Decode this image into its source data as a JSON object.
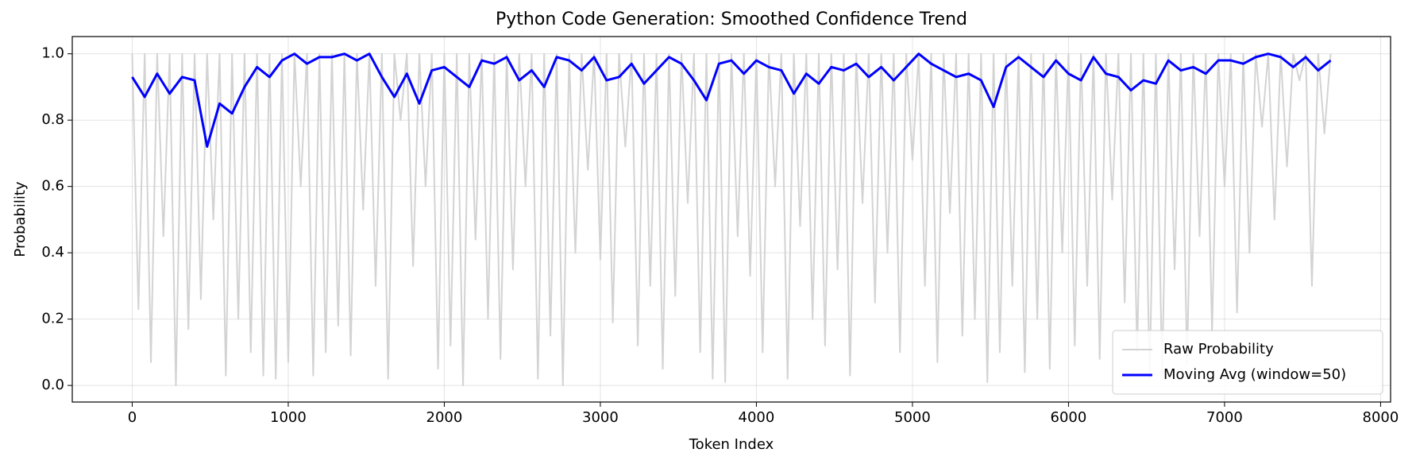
{
  "chart_data": {
    "type": "line",
    "title": "Python Code Generation: Smoothed Confidence Trend",
    "x_label": "Token Index",
    "y_label": "Probability",
    "xlim": [
      -384,
      8064
    ],
    "ylim": [
      -0.05,
      1.052
    ],
    "xticks": [
      0,
      1000,
      2000,
      3000,
      4000,
      5000,
      6000,
      7000,
      8000
    ],
    "yticks": [
      {
        "value": 0,
        "label": "0.0"
      },
      0.2,
      0.4,
      0.6,
      0.8,
      {
        "value": 1,
        "label": "1.0"
      }
    ],
    "grid": true,
    "legend": "lower right",
    "series": [
      {
        "name": "Raw Probability",
        "color": "#d3d3d3",
        "line_width": 2,
        "x": [
          0,
          40,
          80,
          120,
          160,
          200,
          240,
          280,
          320,
          360,
          400,
          440,
          480,
          520,
          560,
          600,
          640,
          680,
          720,
          760,
          800,
          840,
          880,
          920,
          960,
          1000,
          1040,
          1080,
          1120,
          1160,
          1200,
          1240,
          1280,
          1320,
          1360,
          1400,
          1440,
          1480,
          1520,
          1560,
          1600,
          1640,
          1680,
          1720,
          1760,
          1800,
          1840,
          1880,
          1920,
          1960,
          2000,
          2040,
          2080,
          2120,
          2160,
          2200,
          2240,
          2280,
          2320,
          2360,
          2400,
          2440,
          2480,
          2520,
          2560,
          2600,
          2640,
          2680,
          2720,
          2760,
          2800,
          2840,
          2880,
          2920,
          2960,
          3000,
          3040,
          3080,
          3120,
          3160,
          3200,
          3240,
          3280,
          3320,
          3360,
          3400,
          3440,
          3480,
          3520,
          3560,
          3600,
          3640,
          3680,
          3720,
          3760,
          3800,
          3840,
          3880,
          3920,
          3960,
          4000,
          4040,
          4080,
          4120,
          4160,
          4200,
          4240,
          4280,
          4320,
          4360,
          4400,
          4440,
          4480,
          4520,
          4560,
          4600,
          4640,
          4680,
          4720,
          4760,
          4800,
          4840,
          4880,
          4920,
          4960,
          5000,
          5040,
          5080,
          5120,
          5160,
          5200,
          5240,
          5280,
          5320,
          5360,
          5400,
          5440,
          5480,
          5520,
          5560,
          5600,
          5640,
          5680,
          5720,
          5760,
          5800,
          5840,
          5880,
          5920,
          5960,
          6000,
          6040,
          6080,
          6120,
          6160,
          6200,
          6240,
          6280,
          6320,
          6360,
          6400,
          6440,
          6480,
          6520,
          6560,
          6600,
          6640,
          6680,
          6720,
          6760,
          6800,
          6840,
          6880,
          6920,
          6960,
          7000,
          7040,
          7080,
          7120,
          7160,
          7200,
          7240,
          7280,
          7320,
          7360,
          7400,
          7440,
          7480,
          7520,
          7560,
          7600,
          7640,
          7680
        ],
        "values": [
          1,
          0.23,
          1,
          0.07,
          1,
          0.45,
          1,
          0.0,
          1,
          0.17,
          1,
          0.26,
          1,
          0.5,
          1,
          0.03,
          1,
          0.2,
          1,
          0.1,
          1,
          0.03,
          1,
          0.02,
          1,
          0.07,
          1,
          0.6,
          1,
          0.03,
          1,
          0.1,
          1,
          0.18,
          1,
          0.09,
          1,
          0.53,
          1,
          0.3,
          1,
          0.02,
          1,
          0.8,
          1,
          0.36,
          1,
          0.6,
          1,
          0.05,
          1,
          0.12,
          1,
          0.0,
          1,
          0.44,
          1,
          0.2,
          1,
          0.08,
          1,
          0.35,
          1,
          0.6,
          1,
          0.02,
          1,
          0.15,
          1,
          0.0,
          1,
          0.4,
          1,
          0.65,
          1,
          0.38,
          1,
          0.19,
          1,
          0.72,
          1,
          0.12,
          1,
          0.3,
          1,
          0.05,
          1,
          0.27,
          1,
          0.55,
          1,
          0.1,
          1,
          0.02,
          1,
          0.01,
          1,
          0.45,
          1,
          0.33,
          1,
          0.1,
          1,
          0.6,
          1,
          0.02,
          1,
          0.48,
          1,
          0.2,
          1,
          0.12,
          1,
          0.35,
          1,
          0.03,
          1,
          0.55,
          1,
          0.25,
          1,
          0.4,
          1,
          0.1,
          1,
          0.68,
          1,
          0.3,
          1,
          0.07,
          1,
          0.52,
          1,
          0.15,
          1,
          0.2,
          1,
          0.01,
          1,
          0.1,
          1,
          0.3,
          1,
          0.04,
          1,
          0.2,
          1,
          0.05,
          1,
          0.4,
          1,
          0.12,
          1,
          0.3,
          1,
          0.08,
          1,
          0.56,
          1,
          0.25,
          1,
          0.1,
          1,
          0.02,
          1,
          0.03,
          1,
          0.35,
          1,
          0.07,
          1,
          0.45,
          1,
          0.16,
          1,
          0.6,
          1,
          0.22,
          1,
          0.4,
          1,
          0.78,
          1,
          0.5,
          1,
          0.66,
          1,
          0.92,
          1,
          0.3,
          1,
          0.76,
          1
        ]
      },
      {
        "name": "Moving Avg (window=50)",
        "color": "#0000ff",
        "line_width": 3,
        "x": [
          0,
          80,
          160,
          240,
          320,
          400,
          480,
          560,
          640,
          720,
          800,
          880,
          960,
          1040,
          1120,
          1200,
          1280,
          1360,
          1440,
          1520,
          1600,
          1680,
          1760,
          1840,
          1920,
          2000,
          2080,
          2160,
          2240,
          2320,
          2400,
          2480,
          2560,
          2640,
          2720,
          2800,
          2880,
          2960,
          3040,
          3120,
          3200,
          3280,
          3360,
          3440,
          3520,
          3600,
          3680,
          3760,
          3840,
          3920,
          4000,
          4080,
          4160,
          4240,
          4320,
          4400,
          4480,
          4560,
          4640,
          4720,
          4800,
          4880,
          4960,
          5040,
          5120,
          5200,
          5280,
          5360,
          5440,
          5520,
          5600,
          5680,
          5760,
          5840,
          5920,
          6000,
          6080,
          6160,
          6240,
          6320,
          6400,
          6480,
          6560,
          6640,
          6720,
          6800,
          6880,
          6960,
          7040,
          7120,
          7200,
          7280,
          7360,
          7440,
          7520,
          7600,
          7680
        ],
        "values": [
          0.93,
          0.87,
          0.94,
          0.88,
          0.93,
          0.92,
          0.72,
          0.85,
          0.82,
          0.9,
          0.96,
          0.93,
          0.98,
          1,
          0.97,
          0.99,
          0.99,
          1,
          0.98,
          1,
          0.93,
          0.87,
          0.94,
          0.85,
          0.95,
          0.96,
          0.93,
          0.9,
          0.98,
          0.97,
          0.99,
          0.92,
          0.95,
          0.9,
          0.99,
          0.98,
          0.95,
          0.99,
          0.92,
          0.93,
          0.97,
          0.91,
          0.95,
          0.99,
          0.97,
          0.92,
          0.86,
          0.97,
          0.98,
          0.94,
          0.98,
          0.96,
          0.95,
          0.88,
          0.94,
          0.91,
          0.96,
          0.95,
          0.97,
          0.93,
          0.96,
          0.92,
          0.96,
          1,
          0.97,
          0.95,
          0.93,
          0.94,
          0.92,
          0.84,
          0.96,
          0.99,
          0.96,
          0.93,
          0.98,
          0.94,
          0.92,
          0.99,
          0.94,
          0.93,
          0.89,
          0.92,
          0.91,
          0.98,
          0.95,
          0.96,
          0.94,
          0.98,
          0.98,
          0.97,
          0.99,
          1,
          0.99,
          0.96,
          0.99,
          0.95,
          0.98
        ]
      }
    ]
  }
}
